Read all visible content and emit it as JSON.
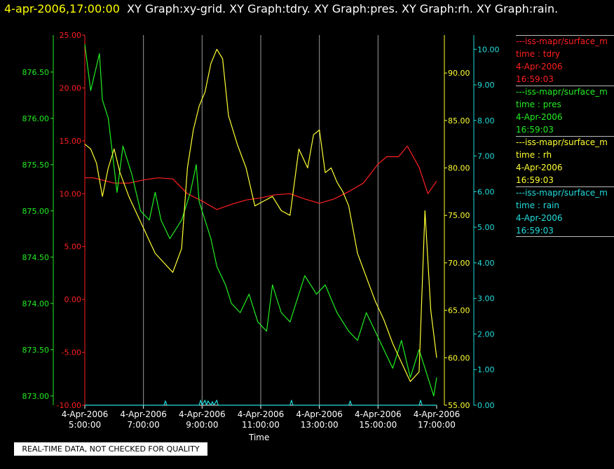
{
  "header": {
    "timestamp": "4-apr-2006,17:00:00",
    "graphs": "XY Graph:xy-grid.  XY Graph:tdry.  XY Graph:pres.  XY Graph:rh.  XY Graph:rain."
  },
  "notice": "REAL-TIME DATA, NOT CHECKED FOR QUALITY",
  "legend": [
    {
      "name": "---iss-mapr/surface_m",
      "line2": "time : tdry",
      "line3": "4-Apr-2006",
      "line4": "16:59:03",
      "color": "#ff2020"
    },
    {
      "name": "---iss-mapr/surface_m",
      "line2": "time : pres",
      "line3": "4-Apr-2006",
      "line4": "16:59:03",
      "color": "#22ee22"
    },
    {
      "name": "---iss-mapr/surface_m",
      "line2": "time : rh",
      "line3": "4-Apr-2006",
      "line4": "16:59:03",
      "color": "#ffff33"
    },
    {
      "name": "---iss-mapr/surface_m",
      "line2": "time : rain",
      "line3": "4-Apr-2006",
      "line4": "16:59:03",
      "color": "#22dddd"
    }
  ],
  "chart_data": {
    "type": "line",
    "xlabel": "Time",
    "x_ticks": [
      {
        "date": "4-Apr-2006",
        "time": "5:00:00"
      },
      {
        "date": "4-Apr-2006",
        "time": "7:00:00"
      },
      {
        "date": "4-Apr-2006",
        "time": "9:00:00"
      },
      {
        "date": "4-Apr-2006",
        "time": "11:00:00"
      },
      {
        "date": "4-Apr-2006",
        "time": "13:00:00"
      },
      {
        "date": "4-Apr-2006",
        "time": "15:00:00"
      },
      {
        "date": "4-Apr-2006",
        "time": "17:00:00"
      }
    ],
    "xlim_hours": [
      5,
      17
    ],
    "grid_x": true,
    "axes": {
      "tdry": {
        "range": [
          -10,
          25
        ],
        "ticks": [
          "25.00",
          "20.00",
          "15.00",
          "10.00",
          "5.00",
          "0.00",
          "-5.00",
          "-10.00"
        ],
        "color": "#ff2020"
      },
      "pres": {
        "range": [
          872.9,
          876.9
        ],
        "ticks": [
          "876.50",
          "876.00",
          "875.50",
          "875.00",
          "874.50",
          "874.00",
          "873.50",
          "873.00"
        ],
        "color": "#22ee22"
      },
      "rh": {
        "range": [
          55,
          94
        ],
        "ticks": [
          "90.00",
          "85.00",
          "80.00",
          "75.00",
          "70.00",
          "65.00",
          "60.00",
          "55.00"
        ],
        "color": "#ffff33"
      },
      "rain": {
        "range": [
          0,
          10.4
        ],
        "ticks": [
          "10.00",
          "9.00",
          "8.00",
          "7.00",
          "6.00",
          "5.00",
          "4.00",
          "3.00",
          "2.00",
          "1.00",
          "0.00"
        ],
        "color": "#22dddd"
      }
    },
    "series": [
      {
        "name": "time : tdry",
        "axis": "tdry",
        "color": "#ff2020",
        "x": [
          5.0,
          5.3,
          6.0,
          6.5,
          7.0,
          7.5,
          8.0,
          8.5,
          9.0,
          9.5,
          10.0,
          10.5,
          11.0,
          11.5,
          12.0,
          12.5,
          13.0,
          13.5,
          14.0,
          14.5,
          15.0,
          15.3,
          15.7,
          16.0,
          16.4,
          16.7,
          17.0
        ],
        "y": [
          11.5,
          11.5,
          11.0,
          11.0,
          11.3,
          11.5,
          11.4,
          10.0,
          9.3,
          8.5,
          9.0,
          9.4,
          9.6,
          9.9,
          10.0,
          9.5,
          9.1,
          9.5,
          10.2,
          11.0,
          12.8,
          13.5,
          13.5,
          14.5,
          12.5,
          10.0,
          11.2
        ]
      },
      {
        "name": "time : pres",
        "axis": "pres",
        "color": "#22ee22",
        "x": [
          5.0,
          5.2,
          5.5,
          5.6,
          5.8,
          6.1,
          6.3,
          6.6,
          6.9,
          7.2,
          7.4,
          7.6,
          7.9,
          8.1,
          8.3,
          8.6,
          8.8,
          8.9,
          9.1,
          9.3,
          9.5,
          9.8,
          10.0,
          10.3,
          10.6,
          10.9,
          11.2,
          11.4,
          11.7,
          12.0,
          12.2,
          12.5,
          12.9,
          13.2,
          13.6,
          14.0,
          14.3,
          14.6,
          14.9,
          15.2,
          15.5,
          15.8,
          16.1,
          16.4,
          16.7,
          16.9,
          17.0
        ],
        "y": [
          876.8,
          876.3,
          876.7,
          876.2,
          876.0,
          875.2,
          875.7,
          875.4,
          875.0,
          874.9,
          875.2,
          874.9,
          874.7,
          874.8,
          874.9,
          875.2,
          875.5,
          875.1,
          874.9,
          874.7,
          874.4,
          874.2,
          874.0,
          873.9,
          874.1,
          873.8,
          873.7,
          874.2,
          873.9,
          873.8,
          874.0,
          874.3,
          874.1,
          874.2,
          873.9,
          873.7,
          873.6,
          873.9,
          873.7,
          873.5,
          873.3,
          873.6,
          873.2,
          873.5,
          873.2,
          873.0,
          873.2
        ]
      },
      {
        "name": "time : rh",
        "axis": "rh",
        "color": "#ffff33",
        "x": [
          5.0,
          5.2,
          5.4,
          5.6,
          5.8,
          6.0,
          6.2,
          6.5,
          6.8,
          7.1,
          7.4,
          7.7,
          8.0,
          8.3,
          8.5,
          8.7,
          8.9,
          9.1,
          9.3,
          9.5,
          9.7,
          9.9,
          10.2,
          10.5,
          10.8,
          11.1,
          11.4,
          11.7,
          12.0,
          12.3,
          12.6,
          12.8,
          13.0,
          13.2,
          13.4,
          13.6,
          13.8,
          14.0,
          14.3,
          14.6,
          14.9,
          15.2,
          15.5,
          15.8,
          16.1,
          16.4,
          16.6,
          16.8,
          17.0
        ],
        "y": [
          82.5,
          82.0,
          80.5,
          77.0,
          80.0,
          82.0,
          79.5,
          77.0,
          75.0,
          73.0,
          71.0,
          70.0,
          69.0,
          71.5,
          80.0,
          84.0,
          86.5,
          88.0,
          91.0,
          92.5,
          91.5,
          85.5,
          82.5,
          80.0,
          76.0,
          76.5,
          77.0,
          75.5,
          75.0,
          82.0,
          80.0,
          83.5,
          84.0,
          79.5,
          80.0,
          78.5,
          77.5,
          76.0,
          71.0,
          68.5,
          66.0,
          64.0,
          61.5,
          59.5,
          57.5,
          58.5,
          75.5,
          65.0,
          60.0
        ]
      },
      {
        "name": "time : rain",
        "axis": "rain",
        "color": "#22dddd",
        "x": [
          5.0,
          7.7,
          7.75,
          7.8,
          8.9,
          8.95,
          9.0,
          9.1,
          9.15,
          9.2,
          9.3,
          9.35,
          9.4,
          9.5,
          9.55,
          9.6,
          12.0,
          12.05,
          12.1,
          14.0,
          14.05,
          14.1,
          16.4,
          16.45,
          16.5,
          17.0
        ],
        "y": [
          0.0,
          0.0,
          0.12,
          0.0,
          0.0,
          0.14,
          0.0,
          0.14,
          0.0,
          0.12,
          0.0,
          0.1,
          0.0,
          0.14,
          0.0,
          0.0,
          0.0,
          0.14,
          0.0,
          0.0,
          0.12,
          0.0,
          0.0,
          0.14,
          0.0,
          0.0
        ]
      }
    ]
  }
}
